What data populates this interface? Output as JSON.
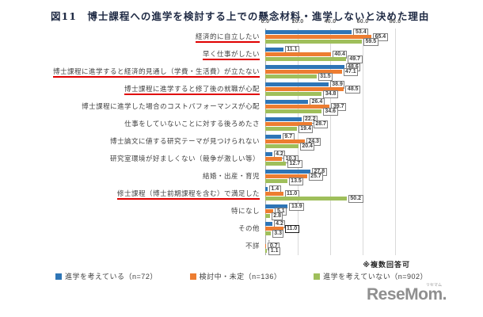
{
  "title": "図11　博士課程への進学を検討する上での懸念材料・進学しないと決めた理由",
  "footnote": "※複数回答可",
  "logo": {
    "text": "ReseMom.",
    "ruby": "リセマム"
  },
  "colors": {
    "considering": "#2e75b6",
    "undecided": "#ed7d31",
    "not_considering": "#9fbf5b",
    "underline": "#e00000"
  },
  "chart_data": {
    "type": "bar",
    "orientation": "horizontal",
    "title": "図11　博士課程への進学を検討する上での懸念材料・進学しないと決めた理由",
    "x_ticks": [
      0,
      20,
      40,
      60,
      80
    ],
    "x_tick_labels": [
      "0.0",
      "20.0",
      "40.0",
      "60.0",
      "80.0"
    ],
    "xlim": [
      0,
      91
    ],
    "grid": true,
    "legend_position": "bottom",
    "null_label": "-",
    "categories": [
      "経済的に自立したい",
      "早く仕事がしたい",
      "博士課程に進学すると経済的見通し（学費・生活費）が立たない",
      "博士課程に進学すると修了後の就職が心配",
      "博士課程に進学した場合のコストパフォーマンスが心配",
      "仕事をしていないことに対する後ろめたさ",
      "博士論文に値する研究テーマが見つけられない",
      "研究室環境が好ましくない（競争が激しい等）",
      "結婚・出産・育児",
      "修士課程（博士前期課程を含む）で満足した",
      "特になし",
      "その他",
      "不詳"
    ],
    "underlined_category_indexes": [
      0,
      1,
      2,
      3,
      9
    ],
    "series": [
      {
        "key": "considering",
        "name": "進学を考えている（n=72）",
        "color": "#2e75b6",
        "values": [
          53.4,
          11.1,
          48.6,
          38.9,
          26.4,
          22.2,
          9.7,
          4.2,
          27.8,
          1.4,
          13.9,
          4.2,
          null
        ]
      },
      {
        "key": "undecided",
        "name": "検討中・未定（n=136）",
        "color": "#ed7d31",
        "values": [
          65.4,
          40.4,
          47.1,
          48.5,
          39.7,
          28.7,
          24.3,
          10.3,
          25.7,
          11.0,
          5.1,
          11.0,
          0.7
        ]
      },
      {
        "key": "not_considering",
        "name": "進学を考えていない（n=902）",
        "color": "#9fbf5b",
        "values": [
          59.5,
          49.7,
          31.5,
          34.8,
          34.6,
          19.4,
          20.4,
          12.7,
          13.5,
          50.2,
          2.8,
          3.3,
          1.1
        ]
      }
    ],
    "highlighted_label": {
      "category_index": 11,
      "series_index": 1
    }
  },
  "legend": [
    {
      "label": "進学を考えている（n=72）",
      "color": "#2e75b6"
    },
    {
      "label": "検討中・未定（n=136）",
      "color": "#ed7d31"
    },
    {
      "label": "進学を考えていない（n=902）",
      "color": "#9fbf5b"
    }
  ]
}
